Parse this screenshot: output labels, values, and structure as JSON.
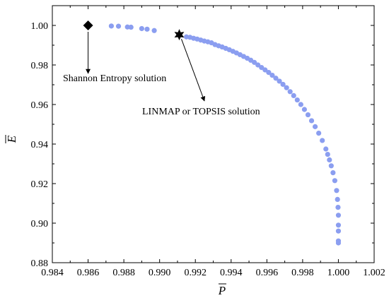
{
  "chart_data": {
    "type": "scatter",
    "xlabel": "P",
    "ylabel": "E",
    "xlim": [
      0.984,
      1.002
    ],
    "ylim": [
      0.88,
      1.01
    ],
    "xticks": [
      0.984,
      0.986,
      0.988,
      0.99,
      0.992,
      0.994,
      0.996,
      0.998,
      1.0,
      1.002
    ],
    "yticks": [
      0.88,
      0.9,
      0.92,
      0.94,
      0.96,
      0.98,
      1.0
    ],
    "xtick_labels": [
      "0.984",
      "0.986",
      "0.988",
      "0.990",
      "0.992",
      "0.994",
      "0.996",
      "0.998",
      "1.000",
      "1.002"
    ],
    "ytick_labels": [
      "0.88",
      "0.90",
      "0.92",
      "0.94",
      "0.96",
      "0.98",
      "1.00"
    ],
    "grid": false,
    "series_color": "#8b9ef0",
    "marker_color": "#000000",
    "pareto_points": [
      [
        0.9873,
        0.9997
      ],
      [
        0.9877,
        0.9996
      ],
      [
        0.9882,
        0.9992
      ],
      [
        0.9884,
        0.9991
      ],
      [
        0.989,
        0.9984
      ],
      [
        0.9893,
        0.9981
      ],
      [
        0.9897,
        0.9974
      ],
      [
        0.9915,
        0.9942
      ],
      [
        0.9917,
        0.994
      ],
      [
        0.9919,
        0.9935
      ],
      [
        0.9921,
        0.9931
      ],
      [
        0.9923,
        0.9926
      ],
      [
        0.9925,
        0.9921
      ],
      [
        0.9927,
        0.9917
      ],
      [
        0.9929,
        0.9912
      ],
      [
        0.9931,
        0.9903
      ],
      [
        0.9933,
        0.9897
      ],
      [
        0.9935,
        0.9891
      ],
      [
        0.9937,
        0.9884
      ],
      [
        0.9939,
        0.9877
      ],
      [
        0.9941,
        0.9869
      ],
      [
        0.9943,
        0.9861
      ],
      [
        0.9945,
        0.9852
      ],
      [
        0.9947,
        0.9843
      ],
      [
        0.9949,
        0.9834
      ],
      [
        0.9951,
        0.9824
      ],
      [
        0.9953,
        0.9813
      ],
      [
        0.9955,
        0.98
      ],
      [
        0.9957,
        0.9787
      ],
      [
        0.9959,
        0.9775
      ],
      [
        0.9961,
        0.9762
      ],
      [
        0.9963,
        0.9748
      ],
      [
        0.9965,
        0.9733
      ],
      [
        0.9967,
        0.9718
      ],
      [
        0.9969,
        0.9702
      ],
      [
        0.9971,
        0.9685
      ],
      [
        0.9973,
        0.9665
      ],
      [
        0.9975,
        0.9645
      ],
      [
        0.9977,
        0.9623
      ],
      [
        0.9979,
        0.96
      ],
      [
        0.9981,
        0.9575
      ],
      [
        0.9983,
        0.9548
      ],
      [
        0.9985,
        0.9518
      ],
      [
        0.9987,
        0.9488
      ],
      [
        0.9989,
        0.9455
      ],
      [
        0.9991,
        0.9418
      ],
      [
        0.9993,
        0.9375
      ],
      [
        0.9994,
        0.9348
      ],
      [
        0.9995,
        0.932
      ],
      [
        0.9996,
        0.929
      ],
      [
        0.9997,
        0.9255
      ],
      [
        0.9998,
        0.9215
      ],
      [
        0.9999,
        0.9165
      ],
      [
        0.99995,
        0.912
      ],
      [
        0.99998,
        0.908
      ],
      [
        1.0,
        0.904
      ],
      [
        1.0,
        0.899
      ],
      [
        1.0,
        0.896
      ],
      [
        1.0,
        0.891
      ],
      [
        1.0,
        0.89
      ]
    ],
    "highlighted_points": [
      {
        "label": "Shannon Entropy solution",
        "marker": "diamond",
        "x": 0.986,
        "y": 1.0
      },
      {
        "label": "LINMAP or TOPSIS solution",
        "marker": "star",
        "x": 0.9911,
        "y": 0.9953
      }
    ]
  }
}
